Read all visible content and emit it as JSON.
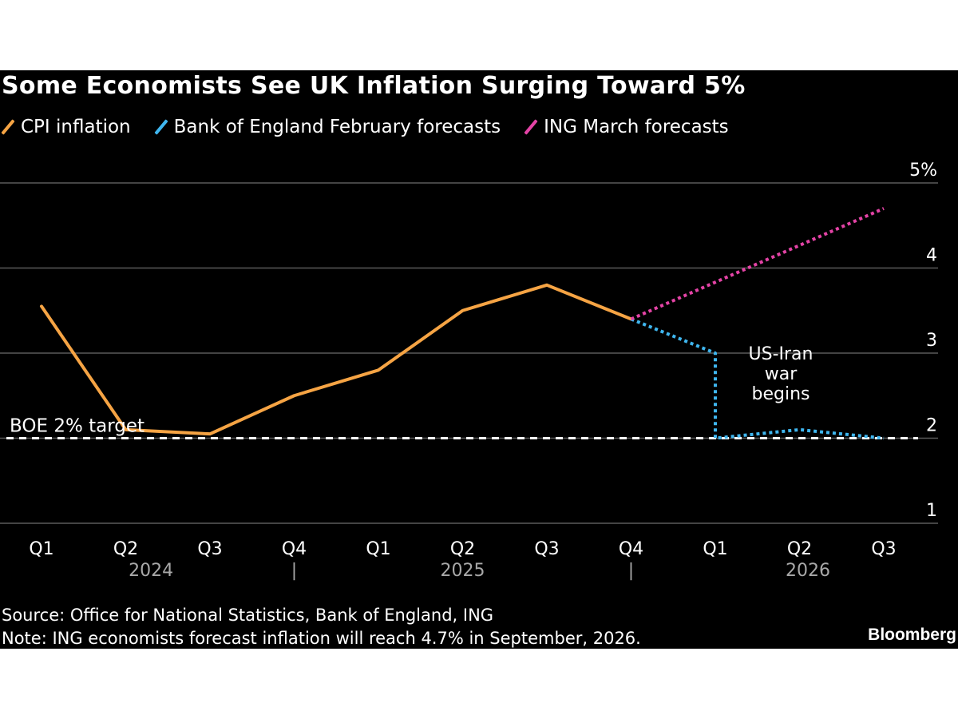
{
  "chart_data": {
    "type": "line",
    "title": "Some Economists See UK Inflation Surging Toward 5%",
    "x": [
      "Q1",
      "Q2",
      "Q3",
      "Q4",
      "Q1",
      "Q2",
      "Q3",
      "Q4",
      "Q1",
      "Q2",
      "Q3"
    ],
    "year_labels": [
      "2024",
      "2025",
      "2026"
    ],
    "year_separator": "|",
    "y_tick_labels": [
      "1",
      "2",
      "3",
      "4",
      "5%"
    ],
    "y_ticks": [
      1,
      2,
      3,
      4,
      5
    ],
    "ylim": [
      1,
      5
    ],
    "grid": true,
    "legend_position": "top-left",
    "series": [
      {
        "name": "CPI inflation",
        "color": "#f6a444",
        "style": "solid",
        "points": [
          {
            "x": "2024 Q1",
            "y": 3.55
          },
          {
            "x": "2024 Q2",
            "y": 2.1
          },
          {
            "x": "2024 Q3",
            "y": 2.05
          },
          {
            "x": "2024 Q4",
            "y": 2.5
          },
          {
            "x": "2025 Q1",
            "y": 2.8
          },
          {
            "x": "2025 Q2",
            "y": 3.5
          },
          {
            "x": "2025 Q3",
            "y": 3.8
          },
          {
            "x": "2025 Q4",
            "y": 3.4
          }
        ]
      },
      {
        "name": "Bank of England February forecasts",
        "color": "#3fb6ef",
        "style": "dotted",
        "points": [
          {
            "x": "2025 Q4",
            "y": 3.4
          },
          {
            "x": "2026 Q1",
            "y": 3.0
          },
          {
            "x": "2026 Q1",
            "y": 2.0
          },
          {
            "x": "2026 Q2",
            "y": 2.1
          },
          {
            "x": "2026 Q3",
            "y": 2.0
          }
        ]
      },
      {
        "name": "ING March forecasts",
        "color": "#e443a6",
        "style": "dotted",
        "points": [
          {
            "x": "2025 Q4",
            "y": 3.4
          },
          {
            "x": "2026 Q3",
            "y": 4.7
          }
        ]
      }
    ],
    "reference_line": {
      "y": 2,
      "label": "BOE 2% target",
      "color": "#ffffff",
      "style": "dashed"
    },
    "annotations": [
      {
        "text_lines": [
          "US-Iran",
          "war",
          "begins"
        ],
        "x": "2026 Q1"
      }
    ]
  },
  "footer": {
    "source": "Source: Office for National Statistics, Bank of England, ING",
    "note": "Note: ING economists forecast inflation will reach 4.7% in September, 2026."
  },
  "brand": "Bloomberg",
  "colors": {
    "background": "#000000",
    "text": "#ffffff",
    "grid": "#5a5a5a",
    "axis_label": "#a8a8a8"
  }
}
